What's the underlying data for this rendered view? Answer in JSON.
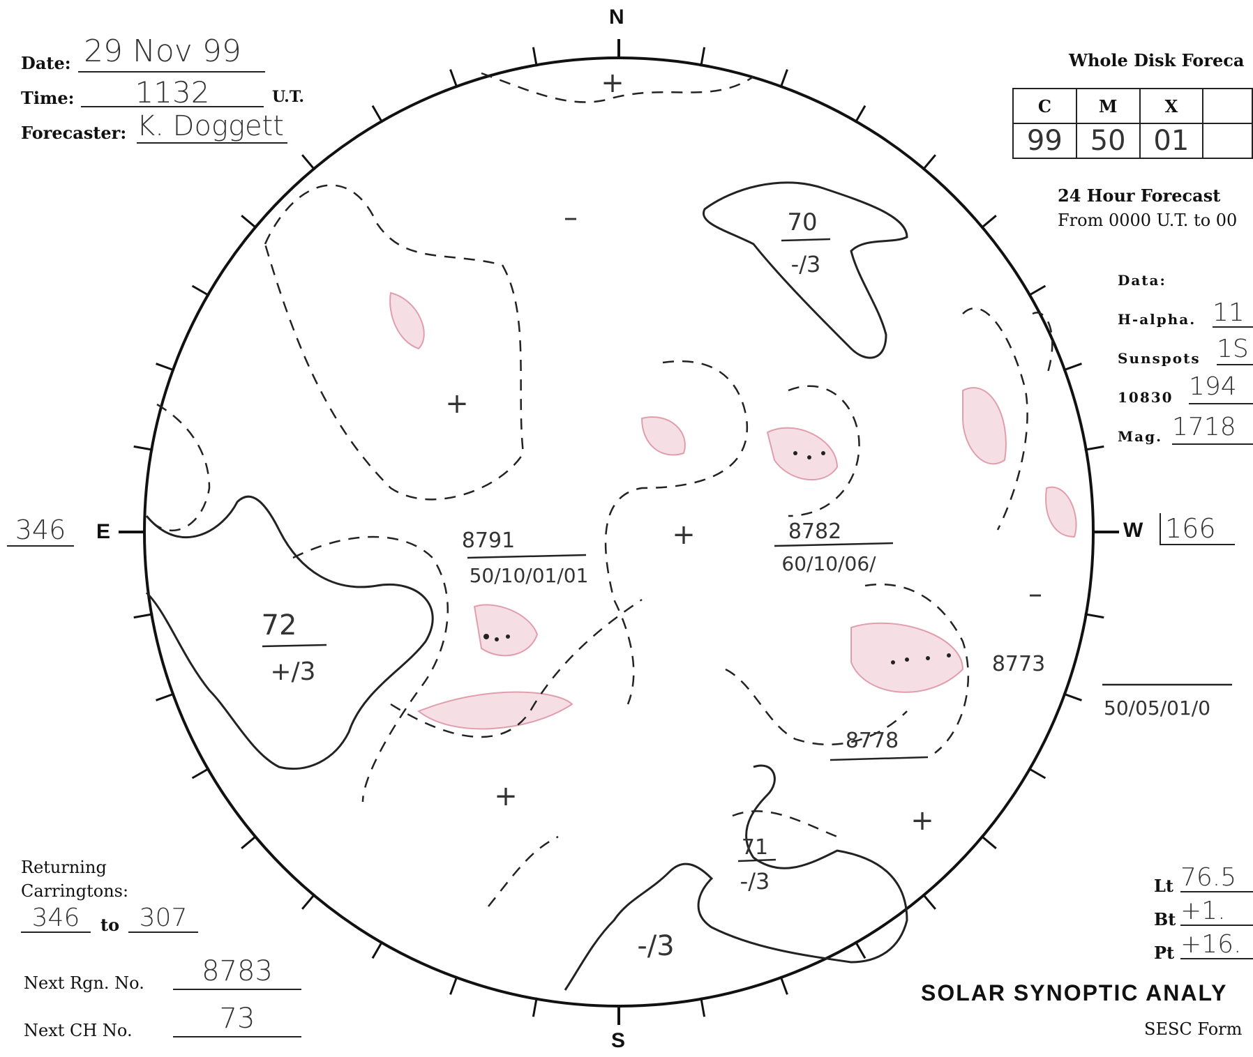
{
  "header": {
    "date_label": "Date:",
    "date_value": "29 Nov 99",
    "time_label": "Time:",
    "time_value": "1132",
    "time_unit": "U.T.",
    "forecaster_label": "Forecaster:",
    "forecaster_value": "K. Doggett"
  },
  "compass": {
    "north": "N",
    "south": "S",
    "east": "E",
    "west": "W"
  },
  "limb": {
    "east_value": "346",
    "west_value": "166"
  },
  "forecast": {
    "title": "Whole Disk Foreca",
    "headers": [
      "C",
      "M",
      "X",
      ""
    ],
    "values": [
      "99",
      "50",
      "01",
      ""
    ],
    "period_title": "24 Hour Forecast",
    "period_range": "From 0000 U.T. to 00"
  },
  "data_panel": {
    "title": "Data:",
    "halpha_label": "H-alpha.",
    "halpha_value": "11",
    "sunspots_label": "Sunspots",
    "sunspots_value": "1S",
    "k10830_label": "10830",
    "k10830_value": "194",
    "mag_label": "Mag.",
    "mag_value": "1718"
  },
  "regions": {
    "r8791_num": "8791",
    "r8791_data": "50/10/01/01",
    "r8782_num": "8782",
    "r8782_data": "60/10/06/",
    "r8773_num": "8773",
    "r8773_data": "50/05/01/0",
    "r8778_num": "8778"
  },
  "coronal_holes": {
    "ch70_num": "70",
    "ch70_pol": "-/3",
    "ch72_num": "72",
    "ch72_pol": "+/3",
    "ch71_num": "71",
    "ch71_pol": "-/3",
    "ch_bottom_pol": "-/3"
  },
  "polarity_marks": {
    "plus": "+",
    "minus": "–"
  },
  "returning": {
    "label1": "Returning",
    "label2": "Carringtons:",
    "from": "346",
    "to_label": "to",
    "to": "307"
  },
  "next": {
    "rgn_label": "Next Rgn. No.",
    "rgn_value": "8783",
    "ch_label": "Next CH No.",
    "ch_value": "73"
  },
  "ephemeris": {
    "lt_label": "Lt",
    "lt_value": "76.5",
    "bt_label": "Bt",
    "bt_value": "+1.",
    "pt_label": "Pt",
    "pt_value": "+16."
  },
  "form_title": "SOLAR SYNOPTIC ANALY",
  "form_number": "SESC Form",
  "colors": {
    "ink": "#222222",
    "plage": "#c8506a",
    "pencil": "#333333"
  }
}
